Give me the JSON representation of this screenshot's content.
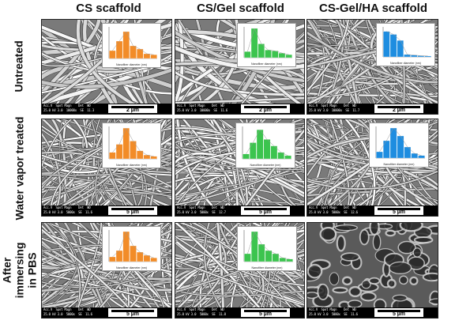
{
  "figure": {
    "columns": [
      "CS scaffold",
      "CS/Gel scaffold",
      "CS-Gel/HA scaffold"
    ],
    "rows": [
      "Untreated",
      "Water vapor treated",
      "After immersing in PBS"
    ],
    "histogram_xlabel": "Nanofiber diameter (nm)",
    "colors": {
      "cs": "#f28c28",
      "gel": "#3cc44e",
      "ha": "#1e8de0"
    },
    "sem_meta_header": "Acc.V  Spot Magn    Det  WD",
    "panels": [
      {
        "row": 0,
        "col": 0,
        "scale": "2 µm",
        "meta_values": "25.0 kV 3.0  10000x  SE  11.3",
        "histogram_color": "cs",
        "histogram_values": [
          0.25,
          0.55,
          0.85,
          0.4,
          0.3,
          0.15,
          0.12
        ]
      },
      {
        "row": 0,
        "col": 1,
        "scale": "2 µm",
        "meta_values": "25.0 kV 3.0  10000x  SE  11.6",
        "histogram_color": "gel",
        "histogram_values": [
          0.2,
          0.95,
          0.45,
          0.25,
          0.22,
          0.15,
          0.1
        ]
      },
      {
        "row": 0,
        "col": 2,
        "scale": "2 µm",
        "meta_values": "25.0 kV 3.0  10000x  SE  11.7",
        "histogram_color": "ha",
        "histogram_values": [
          0.85,
          0.75,
          0.55,
          0.08,
          0.06,
          0.04,
          0.03
        ]
      },
      {
        "row": 1,
        "col": 0,
        "scale": "5 µm",
        "meta_values": "25.0 kV 3.0  5000x  SE  11.6",
        "histogram_color": "cs",
        "histogram_values": [
          0.2,
          0.45,
          0.95,
          0.55,
          0.25,
          0.12,
          0.08
        ]
      },
      {
        "row": 1,
        "col": 1,
        "scale": "5 µm",
        "meta_values": "25.0 kV 3.0  5000x  SE  12.7",
        "histogram_color": "gel",
        "histogram_values": [
          0.15,
          0.5,
          0.9,
          0.6,
          0.4,
          0.2,
          0.1
        ]
      },
      {
        "row": 1,
        "col": 2,
        "scale": "5 µm",
        "meta_values": "25.0 kV 3.0  5000x  SE  12.6",
        "histogram_color": "ha",
        "histogram_values": [
          0.2,
          0.55,
          0.95,
          0.7,
          0.35,
          0.15,
          0.08
        ]
      },
      {
        "row": 2,
        "col": 0,
        "scale": "5 µm",
        "meta_values": "25.0 kV 3.0  5000x  SE  11.6",
        "histogram_color": "cs",
        "histogram_values": [
          0.15,
          0.35,
          0.95,
          0.5,
          0.3,
          0.2,
          0.12
        ]
      },
      {
        "row": 2,
        "col": 1,
        "scale": "5 µm",
        "meta_values": "25.0 kV 3.0  5000x  SE  11.8",
        "histogram_color": "gel",
        "histogram_values": [
          0.25,
          0.95,
          0.55,
          0.35,
          0.25,
          0.12,
          0.08
        ]
      },
      {
        "row": 2,
        "col": 2,
        "scale": "5 µm",
        "meta_values": "25.0 kV 3.0  5000x  SE  11.6",
        "histogram_color": null,
        "histogram_values": []
      }
    ]
  }
}
